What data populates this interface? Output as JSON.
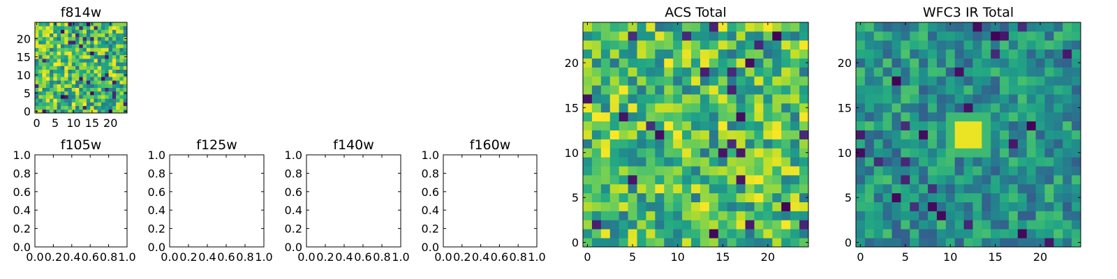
{
  "panels": [
    {
      "title": "f814w",
      "kind": "image",
      "grid_index": 0,
      "xticks": [
        "0",
        "5",
        "10",
        "15",
        "20"
      ],
      "yticks": [
        "0",
        "5",
        "10",
        "15",
        "20"
      ]
    },
    {
      "title": "f105w",
      "kind": "empty",
      "xticks": [
        "0.0",
        "0.2",
        "0.4",
        "0.6",
        "0.8",
        "1.0"
      ],
      "yticks": [
        "0.0",
        "0.2",
        "0.4",
        "0.6",
        "0.8",
        "1.0"
      ]
    },
    {
      "title": "f125w",
      "kind": "empty",
      "xticks": [
        "0.0",
        "0.2",
        "0.4",
        "0.6",
        "0.8",
        "1.0"
      ],
      "yticks": [
        "0.0",
        "0.2",
        "0.4",
        "0.6",
        "0.8",
        "1.0"
      ]
    },
    {
      "title": "f140w",
      "kind": "empty",
      "xticks": [
        "0.0",
        "0.2",
        "0.4",
        "0.6",
        "0.8",
        "1.0"
      ],
      "yticks": [
        "0.0",
        "0.2",
        "0.4",
        "0.6",
        "0.8",
        "1.0"
      ]
    },
    {
      "title": "f160w",
      "kind": "empty",
      "xticks": [
        "0.0",
        "0.2",
        "0.4",
        "0.6",
        "0.8",
        "1.0"
      ],
      "yticks": [
        "0.0",
        "0.2",
        "0.4",
        "0.6",
        "0.8",
        "1.0"
      ]
    },
    {
      "title": "ACS Total",
      "kind": "image",
      "grid_index": 1,
      "xticks": [
        "0",
        "5",
        "10",
        "15",
        "20"
      ],
      "yticks": [
        "0",
        "5",
        "10",
        "15",
        "20"
      ]
    },
    {
      "title": "WFC3 IR Total",
      "kind": "image",
      "grid_index": 2,
      "xticks": [
        "0",
        "5",
        "10",
        "15",
        "20"
      ],
      "yticks": [
        "0",
        "5",
        "10",
        "15",
        "20"
      ]
    }
  ],
  "chart_data": [
    {
      "type": "heatmap",
      "title": "f814w",
      "x_range": [
        -0.5,
        24.5
      ],
      "y_range": [
        -0.5,
        24.5
      ],
      "grid_shape": [
        25,
        25
      ],
      "colormap": "viridis",
      "values": "pseudo-random noise, approx. uniform on [0.3, 1.0]"
    },
    {
      "type": "heatmap",
      "title": "ACS Total",
      "x_range": [
        -0.5,
        24.5
      ],
      "y_range": [
        -0.5,
        24.5
      ],
      "grid_shape": [
        25,
        25
      ],
      "colormap": "viridis",
      "values": "pseudo-random noise, approx. uniform on [0.35, 1.0]"
    },
    {
      "type": "heatmap",
      "title": "WFC3 IR Total",
      "x_range": [
        -0.5,
        24.5
      ],
      "y_range": [
        -0.5,
        24.5
      ],
      "grid_shape": [
        25,
        25
      ],
      "colormap": "viridis",
      "values": "noise on [0.3, 0.75] with a bright source near (12, 12)",
      "bright_source": {
        "x": [
          11,
          13
        ],
        "y": [
          11,
          13
        ],
        "value": 0.97
      }
    },
    {
      "type": "scatter",
      "title": "f105w",
      "xlim": [
        0,
        1
      ],
      "ylim": [
        0,
        1
      ],
      "values": []
    },
    {
      "type": "scatter",
      "title": "f125w",
      "xlim": [
        0,
        1
      ],
      "ylim": [
        0,
        1
      ],
      "values": []
    },
    {
      "type": "scatter",
      "title": "f140w",
      "xlim": [
        0,
        1
      ],
      "ylim": [
        0,
        1
      ],
      "values": []
    },
    {
      "type": "scatter",
      "title": "f160w",
      "xlim": [
        0,
        1
      ],
      "ylim": [
        0,
        1
      ],
      "values": []
    }
  ]
}
